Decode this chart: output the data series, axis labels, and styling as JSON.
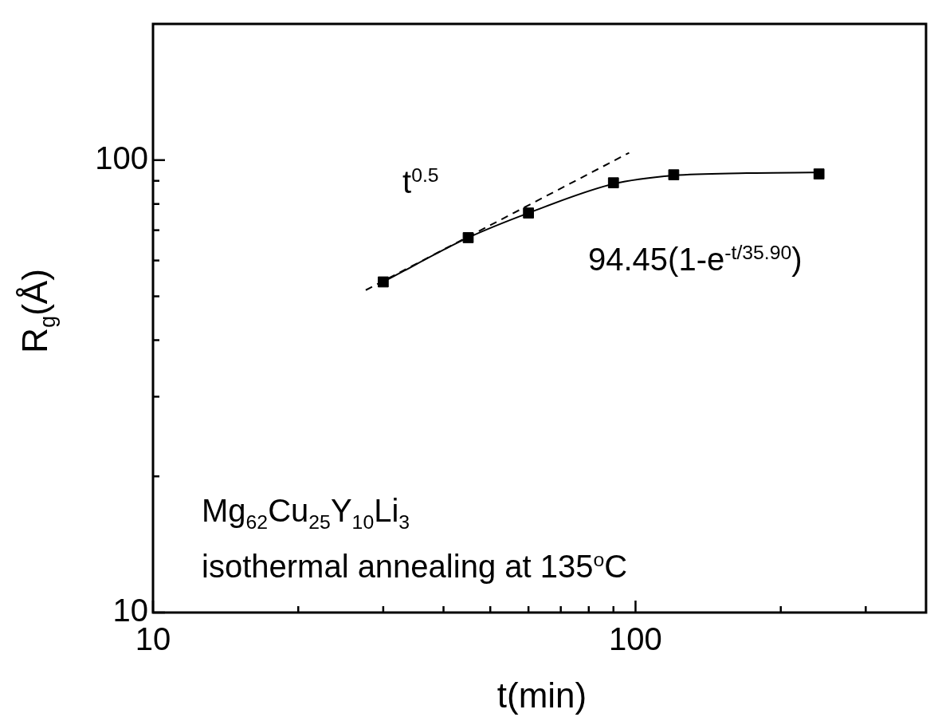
{
  "chart_data": {
    "type": "scatter",
    "xlabel": "t(min)",
    "ylabel": "R$_{g}$(Å)",
    "log": "xy",
    "grid": false,
    "legend": false,
    "xlim": [
      10,
      400
    ],
    "xticks": [
      10,
      {
        "value": 20,
        "label": null
      },
      {
        "value": 30,
        "label": null
      },
      {
        "value": 40,
        "label": null
      },
      {
        "value": 50,
        "label": null
      },
      {
        "value": 60,
        "label": null
      },
      {
        "value": 70,
        "label": null
      },
      {
        "value": 80,
        "label": null
      },
      {
        "value": 90,
        "label": null
      },
      100,
      {
        "value": 200,
        "label": null
      },
      {
        "value": 300,
        "label": null
      }
    ],
    "ylim": [
      10,
      200
    ],
    "yticks": [
      10,
      {
        "value": 20,
        "label": null
      },
      {
        "value": 30,
        "label": null
      },
      {
        "value": 40,
        "label": null
      },
      {
        "value": 50,
        "label": null
      },
      {
        "value": 60,
        "label": null
      },
      {
        "value": 70,
        "label": null
      },
      {
        "value": 80,
        "label": null
      },
      {
        "value": 90,
        "label": null
      },
      100
    ],
    "series": [
      {
        "color": "#000000",
        "marker": "square",
        "x": [
          30,
          45,
          60,
          90,
          120,
          240
        ],
        "values": [
          53.8,
          67.4,
          76.4,
          89.1,
          92.8,
          93.2
        ]
      },
      {
        "type": "line",
        "color": "#000000",
        "marker": "none",
        "line_style": "solid",
        "x": [
          30,
          45,
          60,
          90,
          120,
          170,
          240
        ],
        "values": [
          53.8,
          67.4,
          76.4,
          88.6,
          92.5,
          93.6,
          93.9
        ]
      },
      {
        "type": "line",
        "color": "#000000",
        "marker": "none",
        "line_style": "dashed",
        "x": [
          27.6,
          97
        ],
        "values": [
          51.6,
          103.8
        ]
      }
    ],
    "annotations": [
      "t$^{0.5}$",
      "94.45(1-e$^{-t/35.90}$)",
      "Mg$_{62}$Cu$_{25}$Y$_{10}$Li$_{3}$",
      "isothermal annealing at 135$^{o}$C"
    ]
  }
}
